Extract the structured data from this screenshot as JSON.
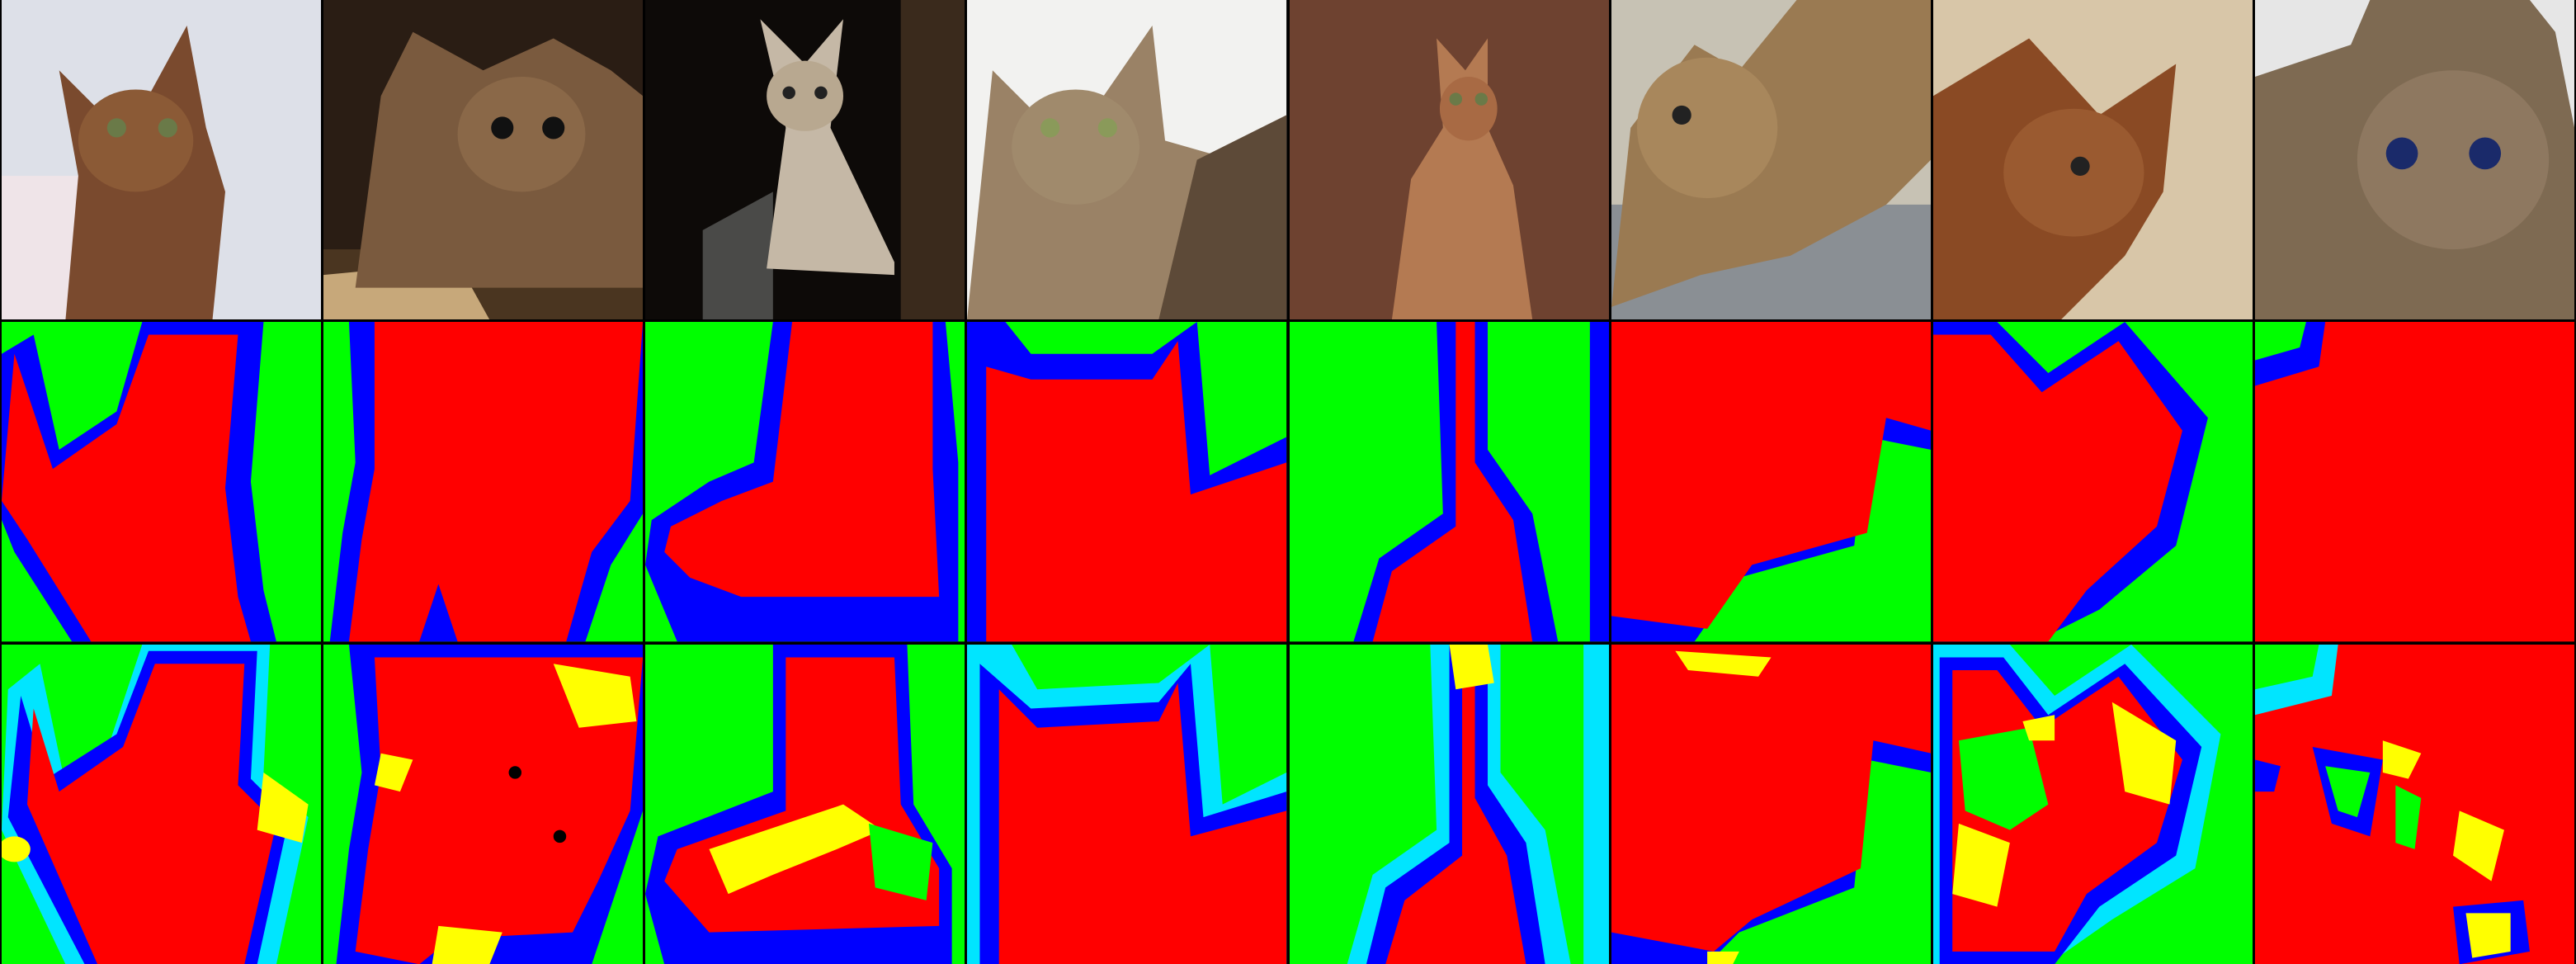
{
  "grid": {
    "columns": 8,
    "rows": [
      "photo",
      "ground-truth-mask",
      "predicted-mask"
    ]
  },
  "colors": {
    "foreground": "#ff0000",
    "background": "#00ff00",
    "boundary": "#0000ff",
    "boundary_light": "#00e5ff",
    "uncertain": "#ffff00",
    "black": "#000000"
  },
  "photos": [
    {
      "subject": "abyssinian-cat-by-patterned-wall",
      "tone": [
        "#d9dde6",
        "#7a4a2e",
        "#efe6ea"
      ]
    },
    {
      "subject": "abyssinian-cat-crouching-on-board",
      "tone": [
        "#2a1d14",
        "#7a5a3e",
        "#c7a87a"
      ]
    },
    {
      "subject": "abyssinian-cat-sitting-dim-room",
      "tone": [
        "#0d0a08",
        "#c5b8a6",
        "#4a3a2c"
      ]
    },
    {
      "subject": "abyssinian-cat-closeup-light",
      "tone": [
        "#f2f2f0",
        "#9a8266",
        "#5d4a38"
      ]
    },
    {
      "subject": "abyssinian-cat-sitting-brown-backdrop",
      "tone": [
        "#6e4230",
        "#b47a52",
        "#4b2a1e"
      ]
    },
    {
      "subject": "abyssinian-cat-on-desk",
      "tone": [
        "#8a8f94",
        "#9a7a52",
        "#c7c2b4"
      ]
    },
    {
      "subject": "abyssinian-cat-blurred-background",
      "tone": [
        "#d8c6a8",
        "#8a4a24",
        "#b8a07e"
      ]
    },
    {
      "subject": "abyssinian-cat-face-closeup",
      "tone": [
        "#e6e6e6",
        "#7e6a52",
        "#4a3a2c"
      ]
    }
  ]
}
